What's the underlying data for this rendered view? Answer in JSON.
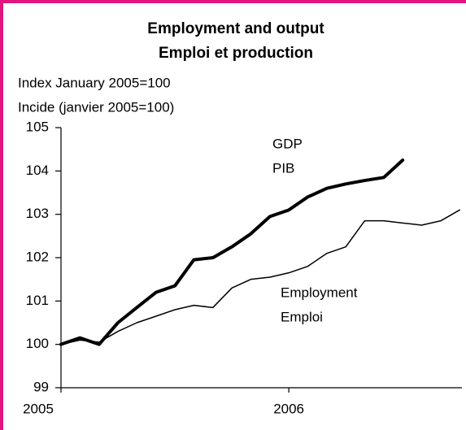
{
  "chart_data": {
    "type": "line",
    "title": "Employment and output",
    "subtitle": "Emploi et production",
    "y_label": "Index January 2005=100",
    "y_label_fr": "Incide (janvier 2005=100)",
    "annotations": [
      "GDP",
      "PIB",
      "Employment",
      "Emploi"
    ],
    "series": [
      {
        "name": "GDP",
        "color": "#000000",
        "x": [
          2005,
          2005.083,
          2005.167,
          2005.25,
          2005.333,
          2005.417,
          2005.5,
          2005.583,
          2005.667,
          2005.75,
          2005.833,
          2005.917,
          2006,
          2006.083,
          2006.167,
          2006.25,
          2006.333,
          2006.417,
          2006.5
        ],
        "values": [
          100,
          100.15,
          100.0,
          100.5,
          100.85,
          101.2,
          101.35,
          101.95,
          102.0,
          102.25,
          102.55,
          102.95,
          103.1,
          103.4,
          103.6,
          103.7,
          103.78,
          103.85,
          104.25
        ]
      },
      {
        "name": "Employment",
        "color": "#000000",
        "x": [
          2005,
          2005.083,
          2005.167,
          2005.25,
          2005.333,
          2005.417,
          2005.5,
          2005.583,
          2005.667,
          2005.75,
          2005.833,
          2005.917,
          2006,
          2006.083,
          2006.167,
          2006.25,
          2006.333,
          2006.417,
          2006.5,
          2006.583,
          2006.667,
          2006.75
        ],
        "values": [
          100,
          100.1,
          100.05,
          100.3,
          100.5,
          100.65,
          100.8,
          100.9,
          100.85,
          101.3,
          101.5,
          101.55,
          101.65,
          101.8,
          102.1,
          102.25,
          102.85,
          102.85,
          102.8,
          102.75,
          102.85,
          103.1
        ]
      }
    ],
    "xlim": [
      2005,
      2006.76
    ],
    "xticks": [
      2005,
      2006
    ],
    "ylim": [
      99,
      105
    ],
    "yticks": [
      99,
      100,
      101,
      102,
      103,
      104,
      105
    ],
    "grid": false
  }
}
